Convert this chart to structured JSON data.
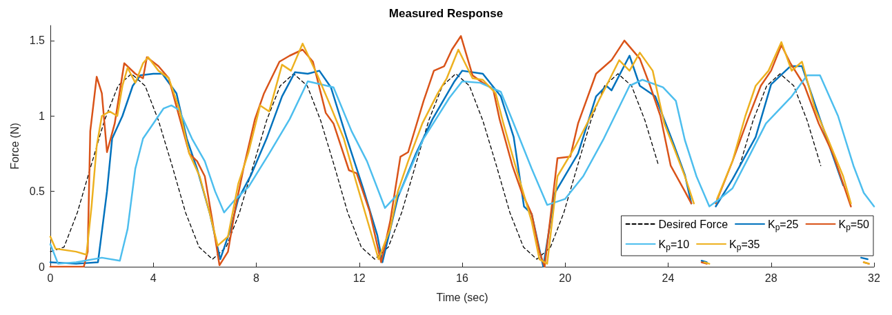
{
  "chart_data": {
    "type": "line",
    "title": "Measured Response",
    "xlabel": "Time (sec)",
    "ylabel": "Force (N)",
    "xlim": [
      0,
      32
    ],
    "xticks": [
      0,
      4,
      8,
      12,
      16,
      20,
      24,
      28,
      32
    ],
    "ylim": [
      0,
      1.6
    ],
    "yticks": [
      0,
      0.5,
      1,
      1.5
    ],
    "legend": "bottom right",
    "series": [
      {
        "name": "Desired Force",
        "color": "#000000",
        "line_style": "dashed",
        "x": [
          0,
          0.53,
          1.05,
          1.58,
          2.1,
          2.63,
          3.15,
          3.68,
          4.2,
          4.73,
          5.25,
          5.78,
          6.3,
          6.83,
          7.35,
          7.88,
          8.4,
          8.93,
          9.45,
          9.98,
          10.5,
          11.03,
          11.55,
          12.08,
          12.6,
          13.13,
          13.65,
          14.18,
          14.7,
          15.23,
          15.75,
          16.28,
          16.8,
          17.33,
          17.85,
          18.38,
          18.9,
          19.43,
          19.95,
          20.48,
          21.0,
          21.53,
          22.05,
          22.58,
          23.1,
          23.63,
          24.15,
          24.68,
          25.2,
          25.73,
          26.25,
          26.78,
          27.3,
          27.83,
          28.35,
          28.88,
          29.4,
          29.93
        ],
        "values": [
          0.1,
          0.13,
          0.36,
          0.67,
          0.97,
          1.2,
          1.28,
          1.2,
          0.97,
          0.67,
          0.36,
          0.13,
          0.05,
          0.13,
          0.36,
          0.67,
          0.97,
          1.2,
          1.28,
          1.2,
          0.97,
          0.67,
          0.36,
          0.13,
          0.05,
          0.13,
          0.36,
          0.67,
          0.97,
          1.2,
          1.28,
          1.2,
          0.97,
          0.67,
          0.36,
          0.13,
          0.05,
          0.13,
          0.36,
          0.67,
          0.97,
          1.2,
          1.28,
          1.2,
          0.97,
          0.67,
          null,
          null,
          null,
          null,
          null,
          0.67,
          0.97,
          1.2,
          1.28,
          1.2,
          0.97,
          0.67
        ]
      },
      {
        "name": "K$_{p}$=25",
        "color": "#0072bd",
        "x": [
          0,
          1.0,
          1.85,
          2.2,
          2.4,
          2.8,
          3.2,
          3.5,
          4.0,
          4.35,
          4.9,
          5.3,
          5.7,
          6.2,
          6.6,
          7.0,
          7.3,
          7.8,
          8.4,
          9.0,
          9.5,
          10.0,
          10.45,
          10.9,
          11.5,
          12.15,
          12.7,
          12.9,
          13.5,
          14.2,
          14.85,
          15.7,
          16.0,
          16.8,
          17.5,
          18.0,
          18.4,
          18.7,
          19.15,
          19.6,
          20.5,
          21.2,
          21.6,
          21.8,
          22.5,
          22.9,
          23.5,
          24.2,
          24.65,
          24.9,
          25.1,
          25.3,
          25.5,
          25.7,
          25.85,
          26.5,
          27.4,
          28.0,
          28.75,
          29.2,
          29.9,
          30.8,
          31.1,
          31.5,
          31.75
        ],
        "values": [
          0.03,
          0.02,
          0.03,
          0.5,
          0.85,
          1.0,
          1.2,
          1.27,
          1.28,
          1.28,
          1.15,
          0.85,
          0.65,
          0.35,
          0.05,
          0.25,
          0.45,
          0.61,
          0.85,
          1.13,
          1.29,
          1.28,
          1.3,
          1.19,
          0.86,
          0.52,
          0.21,
          0.03,
          0.46,
          0.75,
          0.98,
          1.23,
          1.3,
          1.28,
          1.13,
          0.86,
          0.4,
          0.35,
          0.0,
          0.49,
          0.75,
          1.13,
          1.2,
          1.17,
          1.4,
          1.2,
          1.13,
          0.82,
          0.61,
          0.42,
          null,
          0.04,
          0.03,
          null,
          0.4,
          0.58,
          0.86,
          1.21,
          1.33,
          1.33,
          0.98,
          0.54,
          null,
          0.06,
          0.05
        ]
      },
      {
        "name": "K$_{p}$=50",
        "color": "#d95319",
        "x": [
          0,
          1.3,
          1.45,
          1.55,
          1.8,
          2.0,
          2.2,
          2.5,
          2.87,
          3.3,
          3.6,
          3.75,
          4.2,
          4.6,
          5.0,
          5.4,
          5.7,
          6.0,
          6.3,
          6.57,
          6.9,
          7.2,
          7.5,
          7.95,
          8.3,
          8.9,
          9.3,
          9.8,
          10.2,
          10.7,
          11.0,
          11.6,
          11.9,
          12.4,
          12.85,
          13.2,
          13.6,
          13.9,
          14.5,
          14.9,
          15.3,
          15.6,
          15.95,
          16.4,
          16.8,
          17.2,
          17.45,
          17.95,
          18.3,
          18.7,
          19.0,
          19.2,
          19.7,
          20.2,
          20.5,
          21.2,
          21.8,
          22.3,
          22.9,
          23.3,
          23.7,
          24.1,
          24.65,
          24.9,
          25.1,
          25.3,
          25.5,
          25.7,
          25.85,
          26.5,
          27.1,
          27.6,
          28.0,
          28.4,
          28.75,
          29.3,
          29.85,
          30.4,
          30.9,
          31.1,
          31.3,
          31.6,
          31.8
        ],
        "values": [
          0.0,
          0.0,
          0.1,
          0.9,
          1.26,
          1.15,
          0.76,
          0.95,
          1.35,
          1.28,
          1.25,
          1.39,
          1.33,
          1.25,
          1.0,
          0.75,
          0.7,
          0.6,
          0.3,
          0.01,
          0.1,
          0.4,
          0.65,
          0.98,
          1.15,
          1.36,
          1.4,
          1.44,
          1.36,
          1.02,
          0.95,
          0.64,
          0.62,
          0.37,
          0.03,
          0.3,
          0.73,
          0.76,
          1.1,
          1.3,
          1.33,
          1.44,
          1.53,
          1.27,
          1.22,
          1.18,
          0.98,
          0.67,
          0.5,
          0.35,
          0.1,
          0.0,
          0.72,
          0.73,
          0.95,
          1.28,
          1.37,
          1.5,
          1.38,
          1.2,
          1.0,
          0.67,
          0.5,
          0.42,
          null,
          0.03,
          0.02,
          null,
          0.42,
          0.7,
          0.98,
          1.2,
          1.3,
          1.47,
          1.35,
          1.2,
          0.95,
          0.75,
          0.5,
          0.4,
          null,
          0.03,
          0.02
        ]
      },
      {
        "name": "K$_{p}$=10",
        "color": "#4dbeee",
        "x": [
          0,
          0.3,
          1,
          2,
          2.7,
          3.0,
          3.3,
          3.6,
          4.0,
          4.4,
          4.7,
          5.0,
          5.5,
          6.0,
          6.4,
          6.75,
          7.2,
          7.7,
          8.5,
          9.3,
          10.0,
          10.5,
          11.0,
          11.7,
          12.3,
          13.0,
          13.6,
          14.5,
          15.5,
          16.0,
          16.7,
          17.5,
          18.0,
          18.7,
          19.3,
          20.0,
          20.7,
          21.5,
          22.5,
          23.0,
          23.8,
          24.3,
          24.65,
          25.1,
          25.6,
          26.0,
          26.5,
          27.2,
          27.8,
          28.8,
          29.4,
          29.9,
          30.6,
          31.2,
          31.6,
          32
        ],
        "values": [
          0.15,
          0.02,
          0.03,
          0.06,
          0.04,
          0.25,
          0.65,
          0.85,
          0.95,
          1.05,
          1.07,
          1.04,
          0.85,
          0.7,
          0.5,
          0.36,
          0.45,
          0.53,
          0.75,
          0.98,
          1.23,
          1.21,
          1.19,
          0.9,
          0.7,
          0.39,
          0.5,
          0.85,
          1.12,
          1.23,
          1.22,
          1.16,
          0.95,
          0.65,
          0.41,
          0.45,
          0.6,
          0.85,
          1.2,
          1.24,
          1.19,
          1.1,
          0.84,
          0.6,
          0.4,
          0.45,
          0.52,
          0.75,
          0.95,
          1.13,
          1.27,
          1.27,
          1.0,
          0.67,
          0.49,
          0.4
        ]
      },
      {
        "name": "K$_{p}$=35",
        "color": "#edb120",
        "x": [
          0,
          0.2,
          1.0,
          1.4,
          1.6,
          1.8,
          2.0,
          2.3,
          2.6,
          2.8,
          3.0,
          3.3,
          3.6,
          3.8,
          4.2,
          4.6,
          5.0,
          5.4,
          5.8,
          6.2,
          6.5,
          6.9,
          7.3,
          7.7,
          8.15,
          8.5,
          9.0,
          9.35,
          9.8,
          10.35,
          10.8,
          11.4,
          11.9,
          12.5,
          12.75,
          13.2,
          13.5,
          13.9,
          14.45,
          15.05,
          15.4,
          15.85,
          16.4,
          16.8,
          17.3,
          17.6,
          18.1,
          18.7,
          19.0,
          19.3,
          19.7,
          20.4,
          21.0,
          21.6,
          22.1,
          22.5,
          22.9,
          23.4,
          23.85,
          24.2,
          24.65,
          25.0,
          25.2,
          25.4,
          25.6,
          25.75,
          25.9,
          26.5,
          27.0,
          27.4,
          27.9,
          28.4,
          28.8,
          29.2,
          29.7,
          30.2,
          30.8,
          31.1,
          31.3,
          31.6,
          31.8
        ],
        "values": [
          0.2,
          0.12,
          0.1,
          0.08,
          0.4,
          0.8,
          1.0,
          1.03,
          1.0,
          1.2,
          1.32,
          1.22,
          1.35,
          1.39,
          1.3,
          1.25,
          1.05,
          0.75,
          0.6,
          0.35,
          0.14,
          0.2,
          0.55,
          0.76,
          1.07,
          1.03,
          1.34,
          1.3,
          1.48,
          1.28,
          1.1,
          0.85,
          0.55,
          0.2,
          0.05,
          0.25,
          0.5,
          0.7,
          0.95,
          1.15,
          1.25,
          1.44,
          1.25,
          1.24,
          1.15,
          0.95,
          0.65,
          0.3,
          0.05,
          0.02,
          0.6,
          0.8,
          1.0,
          1.2,
          1.37,
          1.3,
          1.42,
          1.3,
          0.95,
          0.8,
          0.6,
          0.42,
          null,
          0.03,
          0.02,
          null,
          0.45,
          0.7,
          1.0,
          1.2,
          1.3,
          1.49,
          1.3,
          1.36,
          1.05,
          0.85,
          0.6,
          0.42,
          null,
          0.03,
          0.02
        ]
      }
    ]
  }
}
